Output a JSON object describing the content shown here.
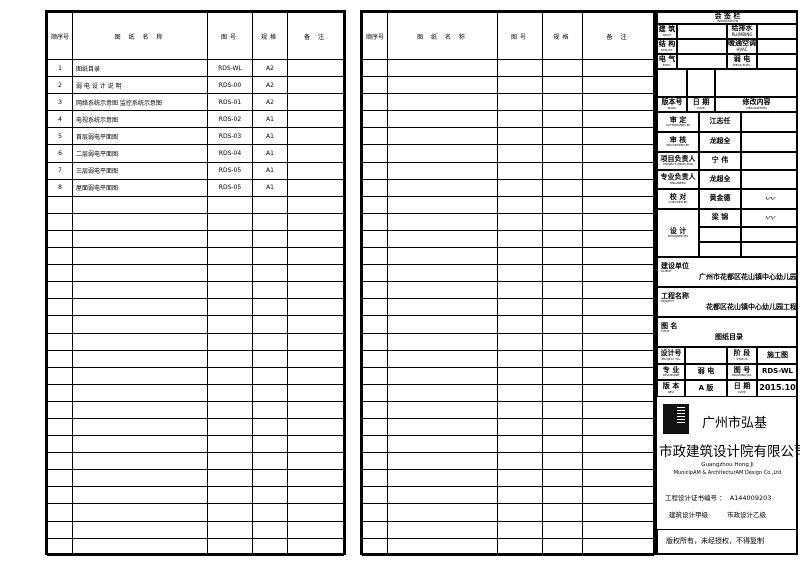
{
  "headers": {
    "no": "顺序号",
    "name": "图 纸 名 称",
    "code": "图号",
    "spec": "规格",
    "remark": "备 注"
  },
  "rows": [
    {
      "no": "1",
      "name": "图纸目录",
      "code": "RDS-WL",
      "spec": "A2"
    },
    {
      "no": "2",
      "name": "弱 电 设 计 说 明",
      "code": "RDS-00",
      "spec": "A2"
    },
    {
      "no": "3",
      "name": "网络系统示意图 监控系统示意图",
      "code": "RDS-01",
      "spec": "A2"
    },
    {
      "no": "4",
      "name": "电视系统示意图",
      "code": "RDS-02",
      "spec": "A1"
    },
    {
      "no": "5",
      "name": "首层弱电平面图",
      "code": "RDS-03",
      "spec": "A1"
    },
    {
      "no": "6",
      "name": "二层弱电平面图",
      "code": "RDS-04",
      "spec": "A1"
    },
    {
      "no": "7",
      "name": "三层弱电平面图",
      "code": "RDS-05",
      "spec": "A1"
    },
    {
      "no": "8",
      "name": "屋面弱电平面图",
      "code": "RDS-05",
      "spec": "A1"
    }
  ],
  "title_block": {
    "countersign": "会 签 栏",
    "countersign_en": "INFORMATION",
    "arch": "建 筑",
    "arch_en": "ARCH.",
    "plumbing": "给排水",
    "plumbing_en": "PLUMBING",
    "struct": "结 构",
    "struct_en": "STRUCT.",
    "hvac": "暖通空调",
    "hvac_en": "HVAC",
    "elec": "电 气",
    "elec_en": "ELEC.",
    "weak": "弱 电",
    "weak_en": "WEAK ELEC.",
    "version_no": "版本号",
    "version_no_en": "MARK",
    "date": "日 期",
    "date_en": "DATE",
    "revision": "修改内容",
    "revision_en": "DESCRIPTION",
    "approved": "审 定",
    "approved_en": "AUTHORIZED BY",
    "approved_name": "江志任",
    "reviewed": "审 核",
    "reviewed_en": "PROCESSED BY",
    "reviewed_name": "龙超全",
    "director": "项目负责人",
    "director_en": "PROJECT DIRECTOR",
    "director_name": "宁 伟",
    "engineer": "专业负责人",
    "engineer_en": "ENGINEER",
    "engineer_name": "龙超全",
    "checked": "校 对",
    "checked_en": "CHECKED BY",
    "checked_name": "黄金德",
    "designer_name": "梁 锦",
    "designed": "设 计",
    "designed_en": "DESIGNED BY",
    "client_label": "建设单位",
    "client_en": "CLIENT",
    "client": "广州市花都区花山镇中心幼儿园",
    "project_label": "工程名称",
    "project_en": "PROJECT",
    "project": "花都区花山镇中心幼儿园工程",
    "title_label": "图 名",
    "title_en": "TITLE",
    "title": "图纸目录",
    "design_no": "设计号",
    "design_no_en": "PROJECT No.",
    "stage": "阶 段",
    "stage_en": "STATUS",
    "stage_val": "施工图",
    "discipline": "专 业",
    "discipline_en": "DISCIPLINE",
    "discipline_val": "弱 电",
    "drawing_no": "图 号",
    "drawing_no_en": "DRAWING No.",
    "drawing_no_val": "RDS-WL",
    "version": "版 本",
    "version_en": "REV.",
    "version_val": "A 版",
    "date2": "日 期",
    "date2_en": "DATE",
    "date2_val": "2015.10",
    "company1": "广州市弘基",
    "company2": "市政建筑设计院有限公司",
    "company_en1": "Guangzhou Hong Ji",
    "company_en2": "MunicipAM & ArchitecturAM Design Co.,Ltd",
    "cert": "工程设计证书编号 ：  A144009203",
    "grade1": "建筑设计甲级",
    "grade2": "市政设计乙级",
    "copyright": "版权所有，未经授权，不得复制"
  }
}
